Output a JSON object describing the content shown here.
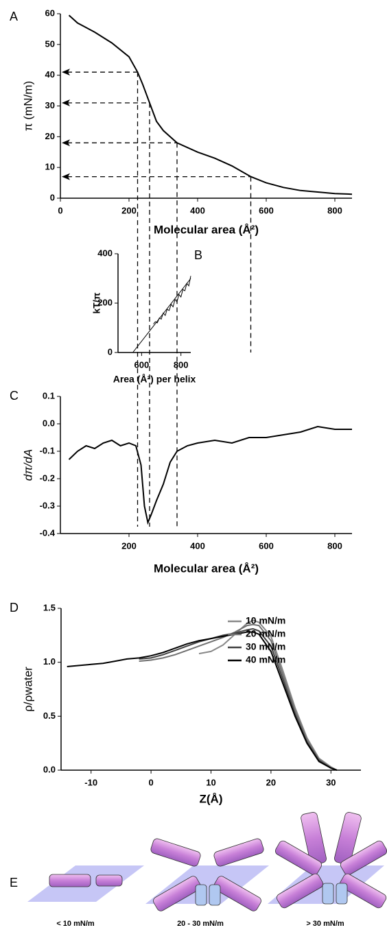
{
  "chart_data": [
    {
      "type": "line",
      "panel_label": "A",
      "x_label": "Molecular area (Å²)",
      "y_label": "π (mN/m)",
      "x": [
        25,
        50,
        100,
        150,
        200,
        225,
        240,
        260,
        280,
        300,
        340,
        400,
        450,
        500,
        555,
        600,
        650,
        700,
        750,
        800,
        850
      ],
      "values": [
        59.5,
        57,
        54,
        50.5,
        46,
        41,
        37,
        31,
        25,
        22,
        18,
        15,
        13,
        10.5,
        7,
        5,
        3.5,
        2.5,
        2,
        1.5,
        1.3
      ],
      "color": "#000000",
      "xlim": [
        0,
        850
      ],
      "xticks": [
        0,
        200,
        400,
        600,
        800
      ],
      "ylim": [
        0,
        60
      ],
      "yticks": [
        0,
        10,
        20,
        30,
        40,
        50,
        60
      ],
      "guides": [
        {
          "x": 225,
          "y": 41
        },
        {
          "x": 260,
          "y": 31
        },
        {
          "x": 340,
          "y": 18
        },
        {
          "x": 555,
          "y": 7
        }
      ]
    },
    {
      "type": "line",
      "panel_label": "B",
      "x_label": "Area (Å²) per helix",
      "y_label": "kT/π",
      "series": [
        {
          "color": "#000000",
          "x": [
            660,
            670,
            680,
            690,
            700,
            710,
            720,
            730,
            740,
            750,
            760,
            770,
            780,
            790,
            800,
            810,
            820,
            830,
            840,
            850
          ],
          "values": [
            115,
            125,
            120,
            140,
            135,
            160,
            150,
            175,
            170,
            195,
            185,
            215,
            205,
            235,
            225,
            255,
            250,
            280,
            270,
            310
          ]
        },
        {
          "color": "#000000",
          "x": [
            555,
            850
          ],
          "values": [
            0,
            300
          ]
        }
      ],
      "xlim": [
        480,
        850
      ],
      "xticks": [
        600,
        800
      ],
      "ylim": [
        0,
        400
      ],
      "yticks": [
        0,
        200,
        400
      ]
    },
    {
      "type": "line",
      "panel_label": "C",
      "x_label": "Molecular area (Å²)",
      "y_label": "dπ/dA",
      "x": [
        25,
        50,
        75,
        100,
        125,
        150,
        175,
        200,
        220,
        235,
        245,
        255,
        265,
        280,
        300,
        320,
        340,
        370,
        400,
        450,
        500,
        550,
        600,
        650,
        700,
        750,
        800,
        850
      ],
      "values": [
        -0.13,
        -0.1,
        -0.08,
        -0.09,
        -0.07,
        -0.06,
        -0.08,
        -0.07,
        -0.08,
        -0.15,
        -0.3,
        -0.36,
        -0.33,
        -0.28,
        -0.22,
        -0.14,
        -0.1,
        -0.08,
        -0.07,
        -0.06,
        -0.07,
        -0.05,
        -0.05,
        -0.04,
        -0.03,
        -0.01,
        -0.02,
        -0.02
      ],
      "color": "#000000",
      "xlim": [
        0,
        850
      ],
      "xticks": [
        200,
        400,
        600,
        800
      ],
      "ylim": [
        -0.4,
        0.1
      ],
      "yticks": [
        -0.4,
        -0.3,
        -0.2,
        -0.1,
        {
          "value": 0,
          "label": "0.0"
        },
        0.1
      ]
    },
    {
      "type": "line",
      "panel_label": "D",
      "x_label": "Z(Å)",
      "y_label": "ρ/ρwater",
      "x": [
        -14,
        -12,
        -10,
        -8,
        -6,
        -4,
        -2,
        0,
        2,
        4,
        6,
        8,
        10,
        12,
        14,
        16,
        17,
        18,
        20,
        22,
        24,
        26,
        28,
        30,
        31
      ],
      "series": [
        {
          "name": "10 mN/m",
          "color": "#888888",
          "values": [
            null,
            null,
            null,
            null,
            null,
            null,
            null,
            null,
            null,
            null,
            null,
            1.08,
            1.1,
            1.16,
            1.26,
            1.36,
            1.39,
            1.37,
            1.24,
            0.92,
            0.58,
            0.3,
            0.11,
            0.03,
            0
          ]
        },
        {
          "name": "20 mN/m",
          "color": "#707070",
          "values": [
            null,
            null,
            null,
            null,
            null,
            null,
            1.01,
            1.02,
            1.04,
            1.07,
            1.11,
            1.15,
            1.19,
            1.23,
            1.28,
            1.34,
            1.35,
            1.34,
            1.2,
            0.88,
            0.55,
            0.28,
            0.1,
            0.02,
            0
          ]
        },
        {
          "name": "30 mN/m",
          "color": "#404040",
          "values": [
            null,
            null,
            null,
            null,
            null,
            null,
            1.03,
            1.04,
            1.07,
            1.11,
            1.15,
            1.19,
            1.22,
            1.25,
            1.27,
            1.3,
            1.31,
            1.29,
            1.15,
            0.84,
            0.52,
            0.26,
            0.09,
            0.02,
            0
          ]
        },
        {
          "name": "40 mN/m",
          "color": "#000000",
          "values": [
            0.96,
            0.97,
            0.98,
            0.99,
            1.01,
            1.03,
            1.04,
            1.06,
            1.09,
            1.13,
            1.17,
            1.2,
            1.22,
            1.24,
            1.26,
            1.28,
            1.28,
            1.26,
            1.1,
            0.8,
            0.5,
            0.25,
            0.08,
            0.02,
            0
          ]
        }
      ],
      "xlim": [
        -15,
        35
      ],
      "xticks": [
        -10,
        0,
        10,
        20,
        30
      ],
      "ylim": [
        0,
        1.5
      ],
      "yticks": [
        {
          "value": 0,
          "label": "0.0"
        },
        0.5,
        {
          "value": 1,
          "label": "1.0"
        },
        1.5
      ],
      "legend": "upper right"
    }
  ],
  "diagram": {
    "panel_label": "E",
    "labels": [
      "< 10 mN/m",
      "20 - 30 mN/m",
      "> 30 mN/m"
    ]
  }
}
